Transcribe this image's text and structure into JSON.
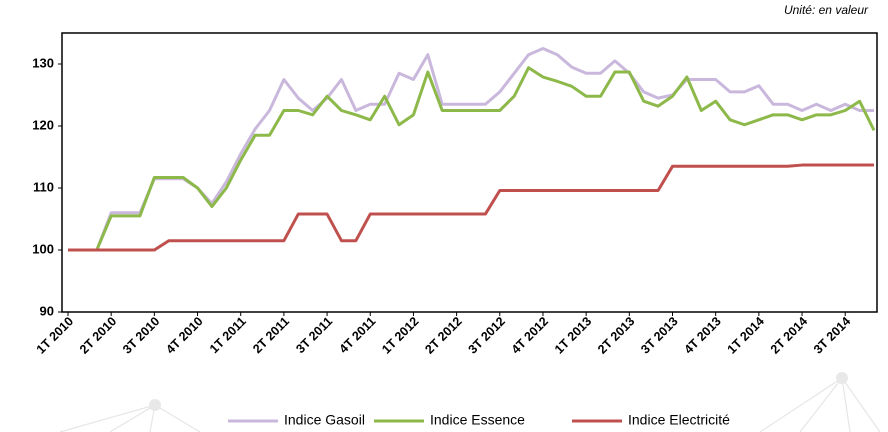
{
  "chart_data": {
    "type": "line",
    "subtitle": "Unité: en valeur",
    "categories": [
      "1T 2010",
      null,
      null,
      "2T 2010",
      null,
      null,
      "3T 2010",
      null,
      null,
      "4T 2010",
      null,
      null,
      "1T 2011",
      null,
      null,
      "2T 2011",
      null,
      null,
      "3T 2011",
      null,
      null,
      "4T 2011",
      null,
      null,
      "1T 2012",
      null,
      null,
      "2T 2012",
      null,
      null,
      "3T 2012",
      null,
      null,
      "4T 2012",
      null,
      null,
      "1T 2013",
      null,
      null,
      "2T 2013",
      null,
      null,
      "3T 2013",
      null,
      null,
      "4T 2013",
      null,
      null,
      "1T 2014",
      null,
      null,
      "2T 2014",
      null,
      null,
      "3T 2014",
      null,
      null
    ],
    "series": [
      {
        "name": "Indice Gasoil",
        "color": "#c9b8dc",
        "values": [
          100,
          100,
          100,
          106,
          106,
          106,
          111.5,
          111.5,
          111.5,
          110,
          107.5,
          111,
          115.5,
          119.5,
          122.5,
          127.5,
          124.5,
          122.5,
          124.5,
          127.5,
          122.5,
          123.5,
          123.5,
          128.5,
          127.5,
          131.5,
          123.5,
          123.5,
          123.5,
          123.5,
          125.5,
          128.5,
          131.5,
          132.5,
          131.5,
          129.5,
          128.5,
          128.5,
          130.5,
          128.5,
          125.5,
          124.5,
          125,
          127.5,
          127.5,
          127.5,
          125.5,
          125.5,
          126.5,
          123.5,
          123.5,
          122.5,
          123.5,
          122.5,
          123.5,
          122.5,
          122.5
        ]
      },
      {
        "name": "Indice Essence",
        "color": "#8db84a",
        "values": [
          100,
          100,
          100,
          105.5,
          105.5,
          105.5,
          111.7,
          111.7,
          111.7,
          110,
          107,
          110,
          114.5,
          118.5,
          118.5,
          122.5,
          122.5,
          121.8,
          124.8,
          122.5,
          121.8,
          121,
          124.8,
          120.2,
          121.8,
          128.7,
          122.5,
          122.5,
          122.5,
          122.5,
          122.5,
          124.8,
          129.4,
          127.9,
          127.2,
          126.4,
          124.8,
          124.8,
          128.7,
          128.7,
          124,
          123.2,
          124.8,
          127.9,
          122.5,
          124,
          121,
          120.2,
          121,
          121.8,
          121.8,
          121,
          121.8,
          121.8,
          122.5,
          124,
          119.3
        ]
      },
      {
        "name": "Indice Electricité",
        "color": "#c0504d",
        "values": [
          100,
          100,
          100,
          100,
          100,
          100,
          100,
          101.5,
          101.5,
          101.5,
          101.5,
          101.5,
          101.5,
          101.5,
          101.5,
          101.5,
          105.8,
          105.8,
          105.8,
          101.5,
          101.5,
          105.8,
          105.8,
          105.8,
          105.8,
          105.8,
          105.8,
          105.8,
          105.8,
          105.8,
          109.6,
          109.6,
          109.6,
          109.6,
          109.6,
          109.6,
          109.6,
          109.6,
          109.6,
          109.6,
          109.6,
          109.6,
          113.5,
          113.5,
          113.5,
          113.5,
          113.5,
          113.5,
          113.5,
          113.5,
          113.5,
          113.7,
          113.7,
          113.7,
          113.7,
          113.7,
          113.7
        ]
      }
    ],
    "ylim": [
      90,
      135
    ],
    "yticks": [
      90,
      100,
      110,
      120,
      130
    ]
  }
}
